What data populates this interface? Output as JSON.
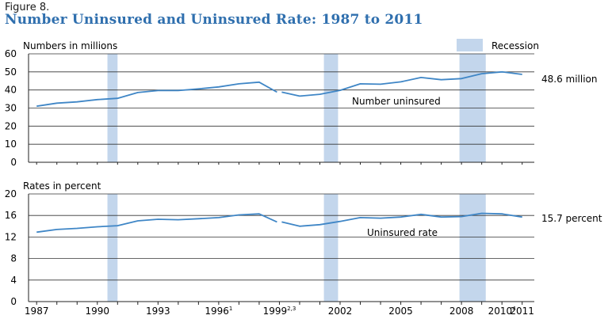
{
  "figure_label": "Figure 8.",
  "title": "Number Uninsured and Uninsured Rate: 1987 to 2011",
  "recession_legend": "Recession",
  "colors": {
    "line": "#3f86c6",
    "recession": "#c3d6ec",
    "title": "#2f6fae",
    "axis": "#222222"
  },
  "x_tick_labels": [
    {
      "year": 1987,
      "label": "1987",
      "sup": ""
    },
    {
      "year": 1990,
      "label": "1990",
      "sup": ""
    },
    {
      "year": 1993,
      "label": "1993",
      "sup": ""
    },
    {
      "year": 1996,
      "label": "1996",
      "sup": "1"
    },
    {
      "year": 1999,
      "label": "1999",
      "sup": "2,3"
    },
    {
      "year": 2002,
      "label": "2002",
      "sup": ""
    },
    {
      "year": 2005,
      "label": "2005",
      "sup": ""
    },
    {
      "year": 2008,
      "label": "2008",
      "sup": ""
    },
    {
      "year": 2010,
      "label": "2010",
      "sup": "4"
    },
    {
      "year": 2011,
      "label": "2011",
      "sup": ""
    }
  ],
  "chart_data": [
    {
      "type": "line",
      "ylabel": "Numbers in millions",
      "ylim": [
        0,
        60
      ],
      "yticks": [
        0,
        10,
        20,
        30,
        40,
        50,
        60
      ],
      "grid": true,
      "recessions": [
        [
          1990.5,
          1991.0
        ],
        [
          2001.2,
          2001.9
        ],
        [
          2007.9,
          2009.2
        ]
      ],
      "series_label": "Number uninsured",
      "end_label": "48.6 million",
      "series": [
        {
          "x": [
            1987,
            1988,
            1989,
            1990,
            1991,
            1992,
            1993,
            1994,
            1995,
            1996,
            1997,
            1998,
            1999
          ],
          "values": [
            31.0,
            32.7,
            33.4,
            34.7,
            35.4,
            38.6,
            39.7,
            39.7,
            40.6,
            41.7,
            43.4,
            44.3,
            38.8
          ]
        },
        {
          "x": [
            1999,
            2000,
            2001,
            2002,
            2003,
            2004,
            2005,
            2006,
            2007,
            2008,
            2009,
            2010,
            2011
          ],
          "values": [
            38.8,
            36.6,
            37.6,
            39.8,
            43.4,
            43.2,
            44.5,
            46.9,
            45.7,
            46.3,
            49.0,
            50.0,
            48.6
          ]
        }
      ]
    },
    {
      "type": "line",
      "ylabel": "Rates in percent",
      "ylim": [
        0,
        20
      ],
      "yticks": [
        0,
        4,
        8,
        12,
        16,
        20
      ],
      "grid": true,
      "recessions": [
        [
          1990.5,
          1991.0
        ],
        [
          2001.2,
          2001.9
        ],
        [
          2007.9,
          2009.2
        ]
      ],
      "series_label": "Uninsured rate",
      "end_label": "15.7 percent",
      "series": [
        {
          "x": [
            1987,
            1988,
            1989,
            1990,
            1991,
            1992,
            1993,
            1994,
            1995,
            1996,
            1997,
            1998,
            1999
          ],
          "values": [
            12.9,
            13.4,
            13.6,
            13.9,
            14.1,
            15.0,
            15.3,
            15.2,
            15.4,
            15.6,
            16.1,
            16.3,
            14.8
          ]
        },
        {
          "x": [
            1999,
            2000,
            2001,
            2002,
            2003,
            2004,
            2005,
            2006,
            2007,
            2008,
            2009,
            2010,
            2011
          ],
          "values": [
            14.8,
            14.0,
            14.3,
            14.9,
            15.6,
            15.5,
            15.7,
            16.2,
            15.7,
            15.8,
            16.4,
            16.3,
            15.7
          ]
        }
      ]
    }
  ]
}
